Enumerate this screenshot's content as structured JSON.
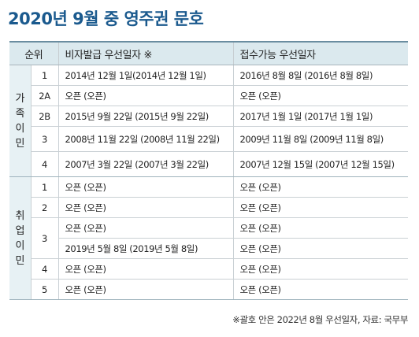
{
  "title": "2020년 9월 중 영주권 문호",
  "headers": {
    "rank": "순위",
    "visa_date": "비자발급 우선일자 ※",
    "filing_date": "접수가능 우선일자"
  },
  "family": {
    "label": [
      "가",
      "족",
      "이",
      "민"
    ],
    "rows": [
      {
        "rank": "1",
        "visa": "2014년 12월 1일(2014년 12월 1일)",
        "filing": "2016년 8월 8일 (2016년 8월 8일)"
      },
      {
        "rank": "2A",
        "visa": "오픈 (오픈)",
        "filing": "오픈 (오픈)"
      },
      {
        "rank": "2B",
        "visa": "2015년 9월 22일 (2015년 9월 22일)",
        "filing": "2017년 1월 1일 (2017년 1월 1일)"
      },
      {
        "rank": "3",
        "visa": "2008년 11월 22일 (2008년 11월 22일)",
        "filing": "2009년 11월 8일 (2009년 11월 8일)"
      },
      {
        "rank": "4",
        "visa": "2007년 3월 22일 (2007년 3월 22일)",
        "filing": "2007년 12월 15일 (2007년 12월 15일)"
      }
    ]
  },
  "employment": {
    "label": [
      "취",
      "업",
      "이",
      "민"
    ],
    "rows": [
      {
        "rank": "1",
        "visa": "오픈 (오픈)",
        "filing": "오픈 (오픈)"
      },
      {
        "rank": "2",
        "visa": "오픈 (오픈)",
        "filing": "오픈 (오픈)"
      },
      {
        "rank": "3",
        "visa": "오픈 (오픈)",
        "filing": "오픈 (오픈)"
      },
      {
        "rank": "",
        "visa": "2019년 5월 8일 (2019년 5월 8일)",
        "filing": "오픈 (오픈)"
      },
      {
        "rank": "4",
        "visa": "오픈 (오픈)",
        "filing": "오픈 (오픈)"
      },
      {
        "rank": "5",
        "visa": "오픈 (오픈)",
        "filing": "오픈 (오픈)"
      }
    ]
  },
  "footnote": "※괄호 안은 2022년 8월 우선일자, 자료: 국무부"
}
